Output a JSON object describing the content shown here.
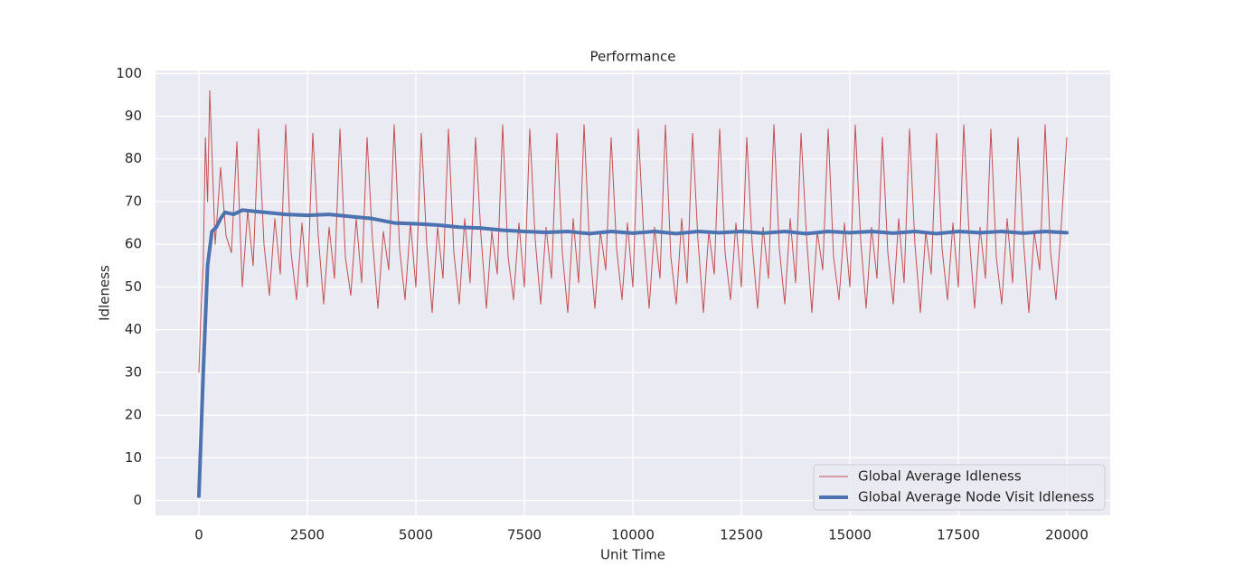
{
  "chart_data": {
    "type": "line",
    "title": "Performance",
    "x_label": "Unit Time",
    "y_label": "Idleness",
    "xlim": [
      -1000,
      21000
    ],
    "ylim": [
      -3.5,
      100.7
    ],
    "xticks": [
      0,
      2500,
      5000,
      7500,
      10000,
      12500,
      15000,
      17500,
      20000
    ],
    "yticks": [
      0,
      10,
      20,
      30,
      40,
      50,
      60,
      70,
      80,
      90,
      100
    ],
    "grid": true,
    "legend": "lower right",
    "series": [
      {
        "name": "Global Average Idleness",
        "color": "#c44e52",
        "width": 1,
        "x": [
          0,
          50,
          100,
          150,
          200,
          250,
          375,
          500,
          625,
          750,
          875,
          1000,
          1125,
          1250,
          1375,
          1500,
          1625,
          1750,
          1875,
          2000,
          2125,
          2250,
          2375,
          2500,
          2625,
          2750,
          2875,
          3000,
          3125,
          3250,
          3375,
          3500,
          3625,
          3750,
          3875,
          4000,
          4125,
          4250,
          4375,
          4500,
          4625,
          4750,
          4875,
          5000,
          5125,
          5250,
          5375,
          5500,
          5625,
          5750,
          5875,
          6000,
          6125,
          6250,
          6375,
          6500,
          6625,
          6750,
          6875,
          7000,
          7125,
          7250,
          7375,
          7500,
          7625,
          7750,
          7875,
          8000,
          8125,
          8250,
          8375,
          8500,
          8625,
          8750,
          8875,
          9000,
          9125,
          9250,
          9375,
          9500,
          9625,
          9750,
          9875,
          10000,
          10125,
          10250,
          10375,
          10500,
          10625,
          10750,
          10875,
          11000,
          11125,
          11250,
          11375,
          11500,
          11625,
          11750,
          11875,
          12000,
          12125,
          12250,
          12375,
          12500,
          12625,
          12750,
          12875,
          13000,
          13125,
          13250,
          13375,
          13500,
          13625,
          13750,
          13875,
          14000,
          14125,
          14250,
          14375,
          14500,
          14625,
          14750,
          14875,
          15000,
          15125,
          15250,
          15375,
          15500,
          15625,
          15750,
          15875,
          16000,
          16125,
          16250,
          16375,
          16500,
          16625,
          16750,
          16875,
          17000,
          17125,
          17250,
          17375,
          17500,
          17625,
          17750,
          17875,
          18000,
          18125,
          18250,
          18375,
          18500,
          18625,
          18750,
          18875,
          19000,
          19125,
          19250,
          19375,
          19500,
          19625,
          19750,
          19875,
          20000
        ],
        "values": [
          30,
          45,
          55,
          85,
          70,
          96,
          60,
          78,
          62,
          58,
          84,
          50,
          68,
          55,
          87,
          60,
          48,
          66,
          53,
          88,
          58,
          47,
          65,
          50,
          86,
          62,
          46,
          64,
          52,
          87,
          57,
          48,
          66,
          51,
          85,
          61,
          45,
          63,
          54,
          88,
          59,
          47,
          65,
          50,
          86,
          60,
          44,
          64,
          52,
          87,
          58,
          46,
          66,
          51,
          85,
          62,
          45,
          63,
          53,
          88,
          57,
          47,
          65,
          50,
          87,
          61,
          46,
          64,
          52,
          86,
          58,
          44,
          66,
          51,
          88,
          60,
          45,
          63,
          54,
          85,
          59,
          47,
          65,
          50,
          87,
          62,
          45,
          64,
          52,
          88,
          57,
          46,
          66,
          51,
          86,
          61,
          44,
          63,
          53,
          87,
          58,
          47,
          65,
          50,
          85,
          60,
          45,
          64,
          52,
          88,
          59,
          46,
          66,
          51,
          86,
          62,
          44,
          63,
          54,
          87,
          57,
          47,
          65,
          50,
          88,
          61,
          45,
          64,
          52,
          85,
          58,
          46,
          66,
          51,
          87,
          60,
          44,
          63,
          53,
          86,
          59,
          47,
          65,
          50,
          88,
          62,
          45,
          64,
          52,
          87,
          57,
          46,
          66,
          51,
          85,
          61,
          44,
          63,
          54,
          88,
          58,
          47,
          65,
          85
        ]
      },
      {
        "name": "Global Average Node Visit Idleness",
        "color": "#4c72b0",
        "width": 4,
        "x": [
          0,
          100,
          200,
          300,
          400,
          500,
          600,
          800,
          1000,
          1500,
          2000,
          2500,
          3000,
          3500,
          4000,
          4500,
          5000,
          5500,
          6000,
          6500,
          7000,
          7500,
          8000,
          8500,
          9000,
          9500,
          10000,
          10500,
          11000,
          11500,
          12000,
          12500,
          13000,
          13500,
          14000,
          14500,
          15000,
          15500,
          16000,
          16500,
          17000,
          17500,
          18000,
          18500,
          19000,
          19500,
          20000
        ],
        "values": [
          1,
          30,
          55,
          63,
          64,
          66,
          67.5,
          67,
          68,
          67.5,
          67,
          66.8,
          67,
          66.5,
          66,
          65,
          64.8,
          64.5,
          64,
          63.8,
          63.3,
          63,
          62.8,
          63,
          62.5,
          63,
          62.6,
          63,
          62.5,
          63,
          62.7,
          63,
          62.6,
          63,
          62.5,
          63,
          62.7,
          63,
          62.6,
          63,
          62.5,
          63,
          62.7,
          63,
          62.6,
          63,
          62.7
        ]
      }
    ]
  }
}
